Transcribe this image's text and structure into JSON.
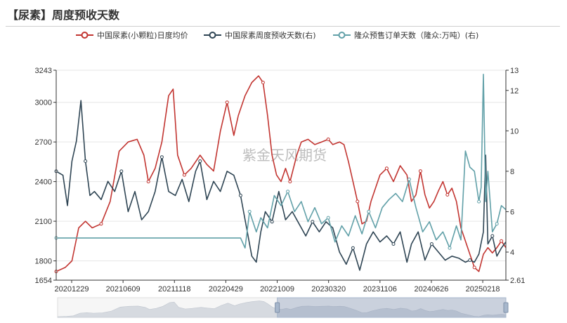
{
  "page": {
    "title": "【尿素】周度预收天数",
    "watermark": "紫金天风期货"
  },
  "colors": {
    "price": "#c23531",
    "days": "#2f4554",
    "orders": "#61a0a8",
    "axis": "#333333",
    "grid": "#e6e6e6"
  },
  "chart_data": {
    "type": "line",
    "x_ticks": [
      "20201229",
      "20210609",
      "20211118",
      "20220429",
      "20221009",
      "20230320",
      "20231106",
      "20240626",
      "20250218"
    ],
    "y_left": {
      "ticks": [
        "3243",
        "3000",
        "2700",
        "2400",
        "2100",
        "1800",
        "1654"
      ],
      "range": [
        1654,
        3243
      ]
    },
    "y_right": {
      "ticks": [
        "13",
        "12",
        "10",
        "8",
        "6",
        "4",
        "2.61"
      ],
      "range": [
        2.61,
        13
      ]
    },
    "series": [
      {
        "name": "中国尿素(小颗粒)日度均价",
        "axis": "left",
        "color": "#c23531",
        "points": [
          [
            0,
            1720
          ],
          [
            0.02,
            1750
          ],
          [
            0.035,
            1800
          ],
          [
            0.05,
            2050
          ],
          [
            0.065,
            2100
          ],
          [
            0.08,
            2050
          ],
          [
            0.1,
            2080
          ],
          [
            0.12,
            2250
          ],
          [
            0.14,
            2630
          ],
          [
            0.16,
            2700
          ],
          [
            0.18,
            2720
          ],
          [
            0.195,
            2600
          ],
          [
            0.205,
            2400
          ],
          [
            0.22,
            2500
          ],
          [
            0.235,
            2700
          ],
          [
            0.25,
            3050
          ],
          [
            0.26,
            3100
          ],
          [
            0.27,
            2600
          ],
          [
            0.285,
            2450
          ],
          [
            0.3,
            2500
          ],
          [
            0.32,
            2600
          ],
          [
            0.335,
            2530
          ],
          [
            0.35,
            2480
          ],
          [
            0.365,
            2780
          ],
          [
            0.38,
            3000
          ],
          [
            0.395,
            2750
          ],
          [
            0.405,
            2900
          ],
          [
            0.42,
            3050
          ],
          [
            0.435,
            3150
          ],
          [
            0.45,
            3200
          ],
          [
            0.46,
            3150
          ],
          [
            0.47,
            2900
          ],
          [
            0.48,
            2600
          ],
          [
            0.49,
            2450
          ],
          [
            0.5,
            2400
          ],
          [
            0.51,
            2500
          ],
          [
            0.52,
            2400
          ],
          [
            0.535,
            2600
          ],
          [
            0.545,
            2700
          ],
          [
            0.56,
            2720
          ],
          [
            0.575,
            2680
          ],
          [
            0.59,
            2700
          ],
          [
            0.605,
            2720
          ],
          [
            0.615,
            2680
          ],
          [
            0.63,
            2700
          ],
          [
            0.64,
            2680
          ],
          [
            0.65,
            2550
          ],
          [
            0.66,
            2400
          ],
          [
            0.67,
            2250
          ],
          [
            0.68,
            2080
          ],
          [
            0.69,
            2100
          ],
          [
            0.7,
            2250
          ],
          [
            0.71,
            2350
          ],
          [
            0.72,
            2450
          ],
          [
            0.735,
            2500
          ],
          [
            0.75,
            2400
          ],
          [
            0.765,
            2520
          ],
          [
            0.78,
            2450
          ],
          [
            0.79,
            2250
          ],
          [
            0.8,
            2300
          ],
          [
            0.81,
            2480
          ],
          [
            0.82,
            2300
          ],
          [
            0.83,
            2200
          ],
          [
            0.84,
            2250
          ],
          [
            0.85,
            2330
          ],
          [
            0.86,
            2400
          ],
          [
            0.87,
            2300
          ],
          [
            0.88,
            2350
          ],
          [
            0.89,
            2250
          ],
          [
            0.9,
            2050
          ],
          [
            0.91,
            1950
          ],
          [
            0.92,
            1850
          ],
          [
            0.93,
            1750
          ],
          [
            0.94,
            1720
          ],
          [
            0.95,
            1850
          ],
          [
            0.96,
            1900
          ],
          [
            0.97,
            1860
          ],
          [
            0.98,
            1900
          ],
          [
            0.99,
            1950
          ],
          [
            1,
            1900
          ]
        ]
      },
      {
        "name": "中国尿素周度预收天数(右)",
        "axis": "right",
        "color": "#2f4554",
        "points": [
          [
            0,
            8
          ],
          [
            0.015,
            7.8
          ],
          [
            0.025,
            6.3
          ],
          [
            0.035,
            8.5
          ],
          [
            0.045,
            9.5
          ],
          [
            0.055,
            11.5
          ],
          [
            0.065,
            8.5
          ],
          [
            0.075,
            6.8
          ],
          [
            0.085,
            7
          ],
          [
            0.1,
            6.6
          ],
          [
            0.115,
            7.5
          ],
          [
            0.13,
            7
          ],
          [
            0.145,
            8
          ],
          [
            0.16,
            6
          ],
          [
            0.175,
            7
          ],
          [
            0.19,
            5.6
          ],
          [
            0.205,
            6
          ],
          [
            0.22,
            7
          ],
          [
            0.235,
            8.7
          ],
          [
            0.25,
            7
          ],
          [
            0.265,
            6.8
          ],
          [
            0.28,
            7.6
          ],
          [
            0.295,
            6.5
          ],
          [
            0.31,
            8
          ],
          [
            0.32,
            8.5
          ],
          [
            0.335,
            6.6
          ],
          [
            0.35,
            7.5
          ],
          [
            0.365,
            7
          ],
          [
            0.38,
            8
          ],
          [
            0.395,
            7.8
          ],
          [
            0.41,
            6.8
          ],
          [
            0.425,
            5
          ],
          [
            0.435,
            3.8
          ],
          [
            0.445,
            3.5
          ],
          [
            0.455,
            5
          ],
          [
            0.465,
            6
          ],
          [
            0.48,
            5.5
          ],
          [
            0.495,
            7
          ],
          [
            0.51,
            5.6
          ],
          [
            0.525,
            6
          ],
          [
            0.54,
            5.4
          ],
          [
            0.555,
            4.8
          ],
          [
            0.57,
            5.5
          ],
          [
            0.585,
            5
          ],
          [
            0.6,
            5.5
          ],
          [
            0.615,
            5.2
          ],
          [
            0.63,
            4
          ],
          [
            0.645,
            3.4
          ],
          [
            0.66,
            4.2
          ],
          [
            0.675,
            3.1
          ],
          [
            0.69,
            4.4
          ],
          [
            0.705,
            5
          ],
          [
            0.72,
            4.5
          ],
          [
            0.735,
            4.8
          ],
          [
            0.75,
            4.4
          ],
          [
            0.765,
            5
          ],
          [
            0.78,
            3.5
          ],
          [
            0.79,
            4.4
          ],
          [
            0.805,
            5
          ],
          [
            0.82,
            3.6
          ],
          [
            0.835,
            4.4
          ],
          [
            0.85,
            4
          ],
          [
            0.865,
            3.6
          ],
          [
            0.88,
            3.8
          ],
          [
            0.895,
            3.7
          ],
          [
            0.91,
            3.5
          ],
          [
            0.92,
            3.6
          ],
          [
            0.93,
            3.5
          ],
          [
            0.94,
            3.9
          ],
          [
            0.95,
            5
          ],
          [
            0.955,
            8.8
          ],
          [
            0.96,
            4.4
          ],
          [
            0.97,
            4.8
          ],
          [
            0.98,
            3.8
          ],
          [
            0.99,
            4.2
          ],
          [
            1,
            4.5
          ]
        ]
      },
      {
        "name": "隆众预售订单天数（隆众:万吨）(右)",
        "axis": "right",
        "color": "#61a0a8",
        "points": [
          [
            0,
            4.7
          ],
          [
            0.1,
            4.7
          ],
          [
            0.2,
            4.7
          ],
          [
            0.3,
            4.7
          ],
          [
            0.41,
            4.7
          ],
          [
            0.42,
            4.2
          ],
          [
            0.43,
            6
          ],
          [
            0.445,
            5
          ],
          [
            0.455,
            5.7
          ],
          [
            0.47,
            5.2
          ],
          [
            0.485,
            6.8
          ],
          [
            0.5,
            6.3
          ],
          [
            0.515,
            7
          ],
          [
            0.53,
            6
          ],
          [
            0.545,
            6.5
          ],
          [
            0.56,
            5.5
          ],
          [
            0.575,
            6.2
          ],
          [
            0.59,
            5.4
          ],
          [
            0.605,
            5.7
          ],
          [
            0.62,
            4.5
          ],
          [
            0.635,
            5.3
          ],
          [
            0.65,
            4.8
          ],
          [
            0.665,
            5.8
          ],
          [
            0.68,
            4.9
          ],
          [
            0.695,
            6
          ],
          [
            0.71,
            5.2
          ],
          [
            0.725,
            6.2
          ],
          [
            0.74,
            6.6
          ],
          [
            0.755,
            6.9
          ],
          [
            0.77,
            6.5
          ],
          [
            0.785,
            7.6
          ],
          [
            0.8,
            6.2
          ],
          [
            0.815,
            5
          ],
          [
            0.83,
            5.5
          ],
          [
            0.845,
            4.6
          ],
          [
            0.86,
            5
          ],
          [
            0.875,
            4.2
          ],
          [
            0.89,
            5.3
          ],
          [
            0.9,
            4.6
          ],
          [
            0.91,
            9
          ],
          [
            0.92,
            8.2
          ],
          [
            0.93,
            8
          ],
          [
            0.94,
            6.5
          ],
          [
            0.945,
            7.2
          ],
          [
            0.95,
            12.8
          ],
          [
            0.955,
            6.5
          ],
          [
            0.96,
            8
          ],
          [
            0.97,
            5
          ],
          [
            0.98,
            5.4
          ],
          [
            0.99,
            6.3
          ],
          [
            1,
            6.1
          ]
        ]
      }
    ]
  }
}
